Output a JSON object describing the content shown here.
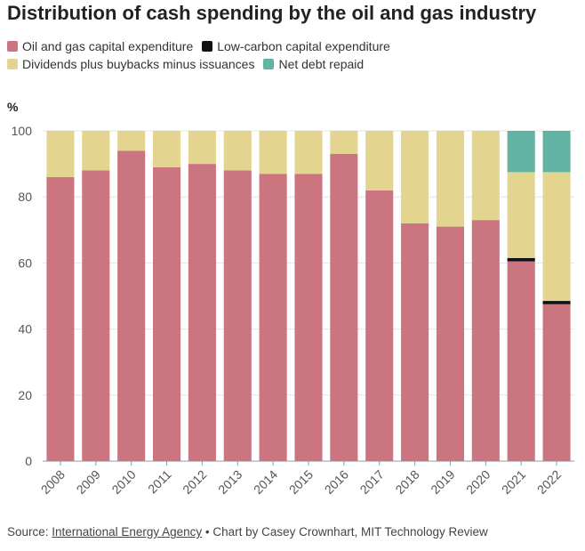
{
  "title": "Distribution of cash spending by the oil and gas industry",
  "unit_label": "%",
  "source": {
    "prefix": "Source: ",
    "link_text": "International Energy Agency",
    "suffix": " • Chart by Casey Crownhart, MIT Technology Review"
  },
  "chart_data": {
    "type": "bar",
    "stacked": true,
    "categories": [
      "2008",
      "2009",
      "2010",
      "2011",
      "2012",
      "2013",
      "2014",
      "2015",
      "2016",
      "2017",
      "2018",
      "2019",
      "2020",
      "2021",
      "2022"
    ],
    "series": [
      {
        "name": "Oil and gas capital expenditure",
        "color": "#cb7580",
        "values": [
          86,
          88,
          94,
          89,
          90,
          88,
          87,
          87,
          93,
          82,
          72,
          71,
          73,
          60.5,
          47.5
        ]
      },
      {
        "name": "Low-carbon capital expenditure",
        "color": "#111111",
        "values": [
          0,
          0,
          0,
          0,
          0,
          0,
          0,
          0,
          0,
          0,
          0,
          0,
          0,
          1,
          1
        ]
      },
      {
        "name": "Dividends plus buybacks minus issuances",
        "color": "#e3d58f",
        "values": [
          14,
          12,
          6,
          11,
          10,
          12,
          13,
          13,
          7,
          18,
          28,
          29,
          27,
          26,
          39
        ]
      },
      {
        "name": "Net debt repaid",
        "color": "#62b3a4",
        "values": [
          0,
          0,
          0,
          0,
          0,
          0,
          0,
          0,
          0,
          0,
          0,
          0,
          0,
          12.5,
          12.5
        ]
      }
    ],
    "ylim": [
      0,
      100
    ],
    "yticks": [
      0,
      20,
      40,
      60,
      80,
      100
    ],
    "ylabel": "%",
    "grid": true,
    "legend_position": "top-left"
  }
}
